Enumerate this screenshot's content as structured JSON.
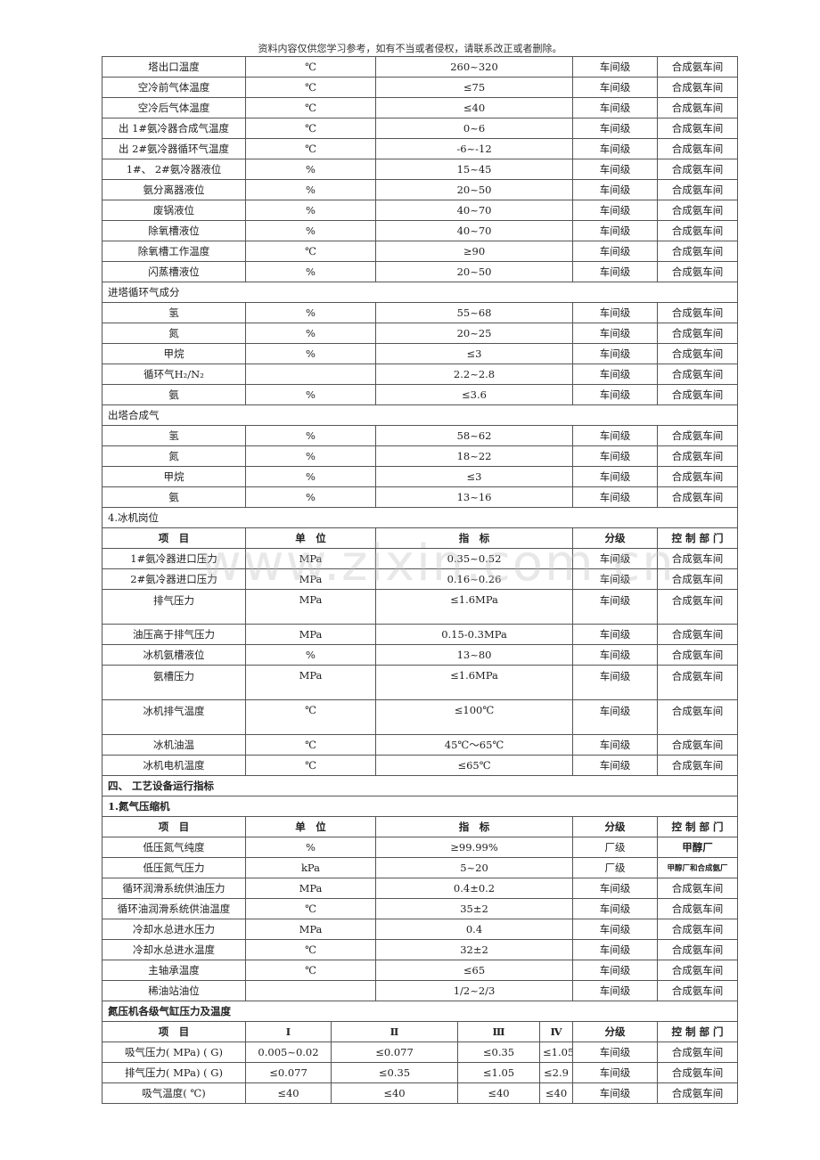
{
  "header_note": "资料内容仅供您学习参考，如有不当或者侵权，请联系改正或者删除。",
  "watermark": "www.zixin.com.cn",
  "rows": [
    {
      "c": [
        "塔出口温度",
        "℃",
        "260~320",
        "车间级",
        "合成氨车间"
      ]
    },
    {
      "c": [
        "空冷前气体温度",
        "℃",
        "≤75",
        "车间级",
        "合成氨车间"
      ]
    },
    {
      "c": [
        "空冷后气体温度",
        "℃",
        "≤40",
        "车间级",
        "合成氨车间"
      ]
    },
    {
      "c": [
        "出 1#氨冷器合成气温度",
        "℃",
        "0~6",
        "车间级",
        "合成氨车间"
      ]
    },
    {
      "c": [
        "出 2#氨冷器循环气温度",
        "℃",
        "-6~-12",
        "车间级",
        "合成氨车间"
      ]
    },
    {
      "c": [
        "1#、 2#氨冷器液位",
        "%",
        "15~45",
        "车间级",
        "合成氨车间"
      ]
    },
    {
      "c": [
        "氨分离器液位",
        "%",
        "20~50",
        "车间级",
        "合成氨车间"
      ]
    },
    {
      "c": [
        "废锅液位",
        "%",
        "40~70",
        "车间级",
        "合成氨车间"
      ]
    },
    {
      "c": [
        "除氧槽液位",
        "%",
        "40~70",
        "车间级",
        "合成氨车间"
      ]
    },
    {
      "c": [
        "除氧槽工作温度",
        "℃",
        "≥90",
        "车间级",
        "合成氨车间"
      ]
    },
    {
      "c": [
        "闪蒸槽液位",
        "%",
        "20~50",
        "车间级",
        "合成氨车间"
      ]
    },
    {
      "sec": "进塔循环气成分"
    },
    {
      "c": [
        "氢",
        "%",
        "55~68",
        "车间级",
        "合成氨车间"
      ]
    },
    {
      "c": [
        "氮",
        "%",
        "20~25",
        "车间级",
        "合成氨车间"
      ]
    },
    {
      "c": [
        "甲烷",
        "%",
        "≤3",
        "车间级",
        "合成氨车间"
      ]
    },
    {
      "c": [
        "循环气H₂/N₂",
        "",
        "2.2~2.8",
        "车间级",
        "合成氨车间"
      ]
    },
    {
      "c": [
        "氨",
        "%",
        "≤3.6",
        "车间级",
        "合成氨车间"
      ]
    },
    {
      "sec": "出塔合成气"
    },
    {
      "c": [
        "氢",
        "%",
        "58~62",
        "车间级",
        "合成氨车间"
      ]
    },
    {
      "c": [
        "氮",
        "%",
        "18~22",
        "车间级",
        "合成氨车间"
      ]
    },
    {
      "c": [
        "甲烷",
        "%",
        "≤3",
        "车间级",
        "合成氨车间"
      ]
    },
    {
      "c": [
        "氨",
        "%",
        "13~16",
        "车间级",
        "合成氨车间"
      ]
    },
    {
      "sec": "4.冰机岗位"
    },
    {
      "hdr": true,
      "c": [
        "项　目",
        "单　位",
        "指　标",
        "分级",
        "控 制 部 门"
      ]
    },
    {
      "c": [
        "1#氨冷器进口压力",
        "MPa",
        "0.35~0.52",
        "车间级",
        "合成氨车间"
      ]
    },
    {
      "c": [
        "2#氨冷器进口压力",
        "MPa",
        "0.16~0.26",
        "车间级",
        "合成氨车间"
      ]
    },
    {
      "tall": true,
      "c": [
        "排气压力",
        "MPa",
        "≤1.6MPa",
        "车间级",
        "合成氨车间"
      ]
    },
    {
      "c": [
        "油压高于排气压力",
        "MPa",
        "0.15-0.3MPa",
        "车间级",
        "合成氨车间"
      ]
    },
    {
      "c": [
        "冰机氨槽液位",
        "%",
        "13~80",
        "车间级",
        "合成氨车间"
      ]
    },
    {
      "tall": true,
      "c": [
        "氨槽压力",
        "MPa",
        "≤1.6MPa",
        "车间级",
        "合成氨车间"
      ]
    },
    {
      "tall": true,
      "c": [
        "冰机排气温度",
        "℃",
        "≤100℃",
        "车间级",
        "合成氨车间"
      ]
    },
    {
      "c": [
        "冰机油温",
        "℃",
        "45℃～65℃",
        "车间级",
        "合成氨车间"
      ]
    },
    {
      "c": [
        "冰机电机温度",
        "℃",
        "≤65℃",
        "车间级",
        "合成氨车间"
      ]
    },
    {
      "sec": "四、 工艺设备运行指标",
      "bold": true
    },
    {
      "sec": "1.氮气压缩机",
      "bold": true
    },
    {
      "hdr": true,
      "c": [
        "项　目",
        "单　位",
        "指　标",
        "分级",
        "控 制 部 门"
      ]
    },
    {
      "c": [
        "低压氮气纯度",
        "%",
        "≥99.99%",
        "厂级",
        "甲醇厂"
      ],
      "boldLast": true
    },
    {
      "c": [
        "低压氮气压力",
        "kPa",
        "5~20",
        "厂级",
        "甲醇厂和合成氨厂"
      ],
      "smallLast": true
    },
    {
      "c": [
        "循环润滑系统供油压力",
        "MPa",
        "0.4±0.2",
        "车间级",
        "合成氨车间"
      ]
    },
    {
      "c": [
        "循环油润滑系统供油温度",
        "℃",
        "35±2",
        "车间级",
        "合成氨车间"
      ]
    },
    {
      "c": [
        "冷却水总进水压力",
        "MPa",
        "0.4",
        "车间级",
        "合成氨车间"
      ]
    },
    {
      "c": [
        "冷却水总进水温度",
        "℃",
        "32±2",
        "车间级",
        "合成氨车间"
      ]
    },
    {
      "c": [
        "主轴承温度",
        "℃",
        "≤65",
        "车间级",
        "合成氨车间"
      ]
    },
    {
      "c": [
        "稀油站油位",
        "",
        "1/2~2/3",
        "车间级",
        "合成氨车间"
      ]
    },
    {
      "sec": "氮压机各级气缸压力及温度",
      "bold": true
    },
    {
      "wide": true,
      "hdr": true,
      "c": [
        "项　目",
        "Ⅰ",
        "Ⅱ",
        "Ⅲ",
        "Ⅳ",
        "分级",
        "控 制 部 门"
      ]
    },
    {
      "wide": true,
      "c": [
        "吸气压力( MPa) ( G)",
        "0.005~0.02",
        "≤0.077",
        "≤0.35",
        "≤1.05",
        "车间级",
        "合成氨车间"
      ]
    },
    {
      "wide": true,
      "c": [
        "排气压力( MPa) ( G)",
        "≤0.077",
        "≤0.35",
        "≤1.05",
        "≤2.9",
        "车间级",
        "合成氨车间"
      ]
    },
    {
      "wide": true,
      "c": [
        "吸气温度( ℃)",
        "≤40",
        "≤40",
        "≤40",
        "≤40",
        "车间级",
        "合成氨车间"
      ]
    }
  ]
}
